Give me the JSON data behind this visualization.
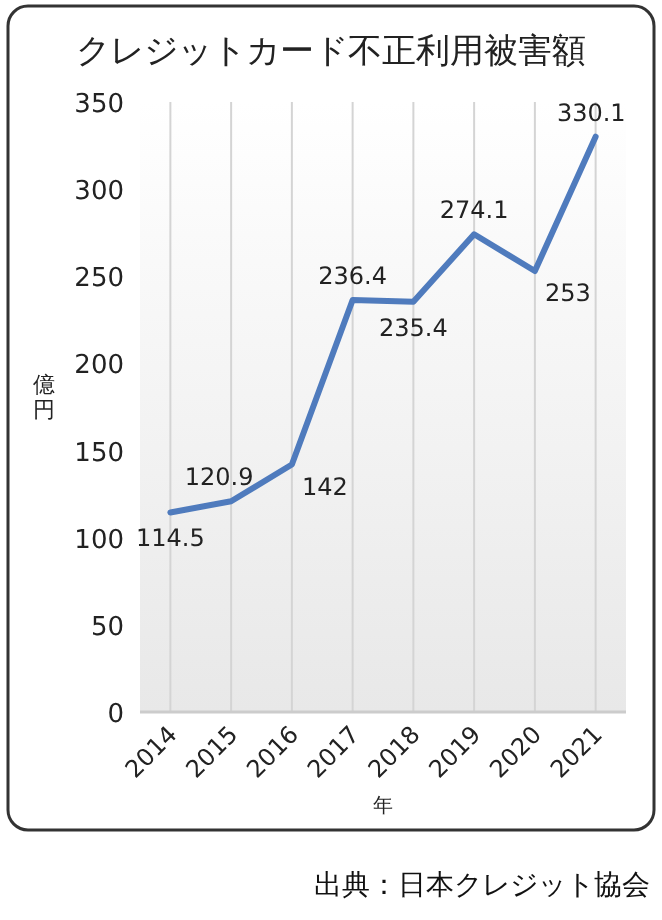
{
  "chart_data": {
    "type": "line",
    "title": "クレジットカード不正利用被害額",
    "xlabel": "年",
    "ylabel": "億円",
    "categories": [
      "2014",
      "2015",
      "2016",
      "2017",
      "2018",
      "2019",
      "2020",
      "2021"
    ],
    "series": [
      {
        "color": "#4f7bbd",
        "values": [
          114.5,
          120.9,
          142,
          236.4,
          235.4,
          274.1,
          253,
          330.1
        ]
      }
    ],
    "ylim": [
      0,
      350
    ],
    "yticks": [
      0,
      50,
      100,
      150,
      200,
      250,
      300,
      350
    ],
    "grid": "x",
    "data_labels": true,
    "marker": "none",
    "line_style": "solid",
    "annotations": [
      "出典：日本クレジット協会"
    ]
  }
}
